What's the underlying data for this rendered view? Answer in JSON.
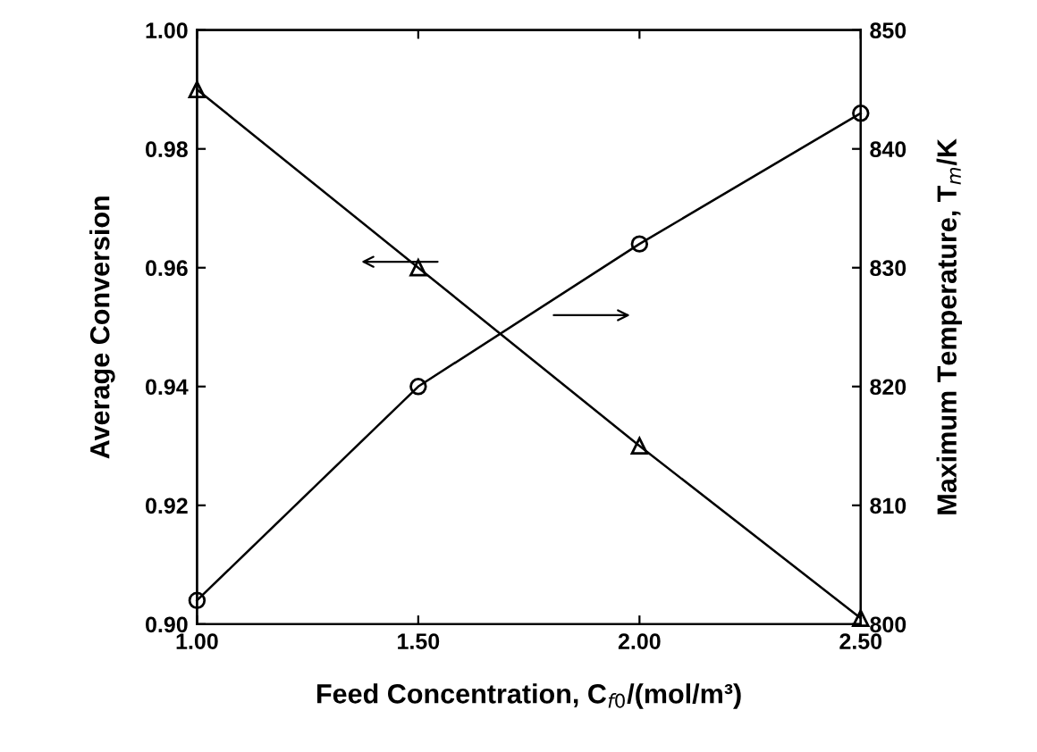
{
  "chart_data": {
    "type": "line",
    "xlabel": "Feed Concentration, C$_{f0}$/(mol/m³)",
    "ylabel": "Average Conversion",
    "y2label": "Maximum Temperature, T$_{m}$/K",
    "x": [
      1.0,
      1.5,
      2.0,
      2.5
    ],
    "series": [
      {
        "color": "#000000",
        "marker": "triangle",
        "values": [
          0.99,
          0.96,
          0.93,
          0.901
        ]
      },
      {
        "color": "#000000",
        "marker": "circle",
        "axis": "y2",
        "values": [
          802,
          820,
          832,
          843
        ]
      }
    ],
    "xlim": [
      1.0,
      2.5
    ],
    "xticks": [
      {
        "value": 1.0,
        "label": "1.00"
      },
      {
        "value": 1.5,
        "label": "1.50"
      },
      {
        "value": 2.0,
        "label": "2.00"
      },
      {
        "value": 2.5,
        "label": "2.50"
      }
    ],
    "ylim": [
      0.9,
      1.0
    ],
    "yticks": [
      {
        "value": 0.9,
        "label": "0.90"
      },
      {
        "value": 0.92,
        "label": "0.92"
      },
      {
        "value": 0.94,
        "label": "0.94"
      },
      {
        "value": 0.96,
        "label": "0.96"
      },
      {
        "value": 0.98,
        "label": "0.98"
      },
      {
        "value": 1.0,
        "label": "1.00"
      }
    ],
    "y2lim": [
      800,
      850
    ],
    "y2ticks": [
      800,
      810,
      820,
      830,
      840,
      850
    ],
    "grid": false,
    "line_style": "solid"
  }
}
